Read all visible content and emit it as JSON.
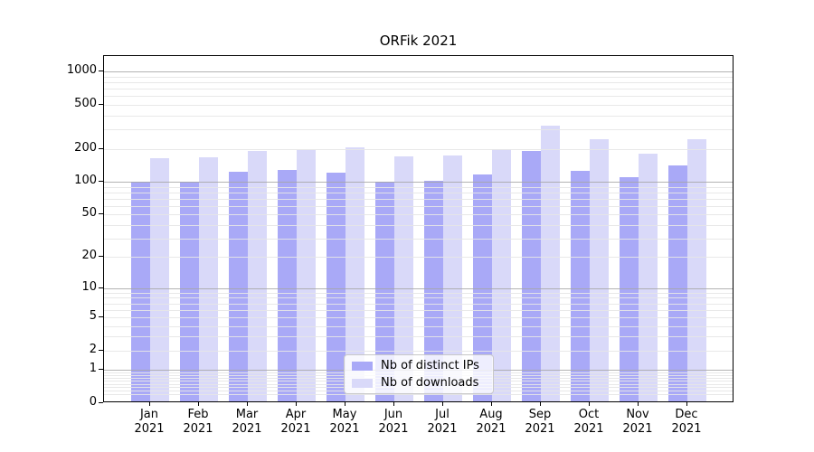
{
  "chart_data": {
    "type": "bar",
    "title": "ORFik 2021",
    "categories": [
      "Jan",
      "Feb",
      "Mar",
      "Apr",
      "May",
      "Jun",
      "Jul",
      "Aug",
      "Sep",
      "Oct",
      "Nov",
      "Dec"
    ],
    "category_year": "2021",
    "series": [
      {
        "name": "Nb of distinct IPs",
        "color": "#a9a9f7",
        "values": [
          100,
          100,
          123,
          128,
          121,
          100,
          103,
          117,
          192,
          127,
          110,
          142
        ]
      },
      {
        "name": "Nb of downloads",
        "color": "#d9d9f9",
        "values": [
          165,
          167,
          190,
          194,
          207,
          171,
          175,
          198,
          322,
          246,
          180,
          246
        ]
      }
    ],
    "scale": "log1p",
    "ylim": [
      0,
      1387
    ],
    "y_ticks": [
      0,
      1,
      2,
      5,
      10,
      20,
      50,
      100,
      200,
      500,
      1000
    ],
    "grid": true,
    "legend_position": "lower center",
    "colors": {
      "major_grid": "#b0b0b0",
      "minor_grid": "#ececec",
      "axis": "#000000",
      "text": "#000000",
      "background": "#ffffff"
    }
  }
}
